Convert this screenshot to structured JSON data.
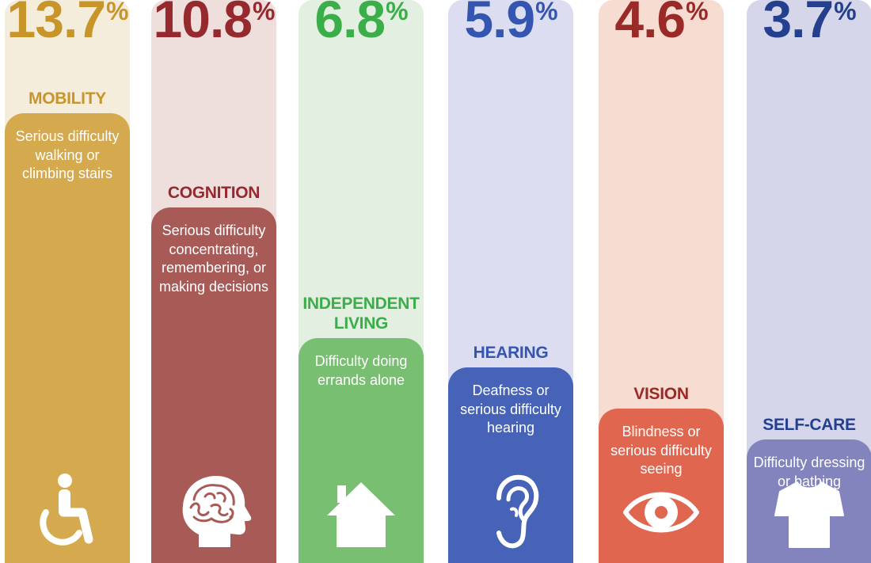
{
  "chart_data": {
    "type": "bar",
    "categories": [
      "MOBILITY",
      "COGNITION",
      "INDEPENDENT LIVING",
      "HEARING",
      "VISION",
      "SELF-CARE"
    ],
    "values": [
      13.7,
      10.8,
      6.8,
      5.9,
      4.6,
      3.7
    ],
    "unit": "%",
    "items": [
      {
        "label": "MOBILITY",
        "label_lines": [
          "MOBILITY"
        ],
        "value_text": "13.7",
        "percent_sign": "%",
        "description": "Serious difficulty walking or climbing stairs",
        "icon": "wheelchair-icon",
        "light_color": "#F5EDDB",
        "dark_color": "#D5A94E",
        "title_color": "#C8952B"
      },
      {
        "label": "COGNITION",
        "label_lines": [
          "COGNITION"
        ],
        "value_text": "10.8",
        "percent_sign": "%",
        "description": "Serious difficulty concentrating, remembering, or making decisions",
        "icon": "brain-icon",
        "light_color": "#EEDEDC",
        "dark_color": "#A85A57",
        "title_color": "#96292E"
      },
      {
        "label": "INDEPENDENT LIVING",
        "label_lines": [
          "INDEPENDENT",
          "LIVING"
        ],
        "value_text": "6.8",
        "percent_sign": "%",
        "description": "Difficulty doing errands alone",
        "icon": "house-icon",
        "light_color": "#E2EFE1",
        "dark_color": "#79BF72",
        "title_color": "#3BAE4A"
      },
      {
        "label": "HEARING",
        "label_lines": [
          "HEARING"
        ],
        "value_text": "5.9",
        "percent_sign": "%",
        "description": "Deafness or serious difficulty hearing",
        "icon": "ear-icon",
        "light_color": "#DCDDF0",
        "dark_color": "#4663B8",
        "title_color": "#3556B0"
      },
      {
        "label": "VISION",
        "label_lines": [
          "VISION"
        ],
        "value_text": "4.6",
        "percent_sign": "%",
        "description": "Blindness or serious difficulty seeing",
        "icon": "eye-icon",
        "light_color": "#F7DCD1",
        "dark_color": "#E06650",
        "title_color": "#9A2A27"
      },
      {
        "label": "SELF-CARE",
        "label_lines": [
          "SELF-CARE"
        ],
        "value_text": "3.7",
        "percent_sign": "%",
        "description": "Difficulty dressing or bathing",
        "icon": "shirt-icon",
        "light_color": "#D5D6EA",
        "dark_color": "#8383BD",
        "title_color": "#253F8F"
      }
    ]
  }
}
